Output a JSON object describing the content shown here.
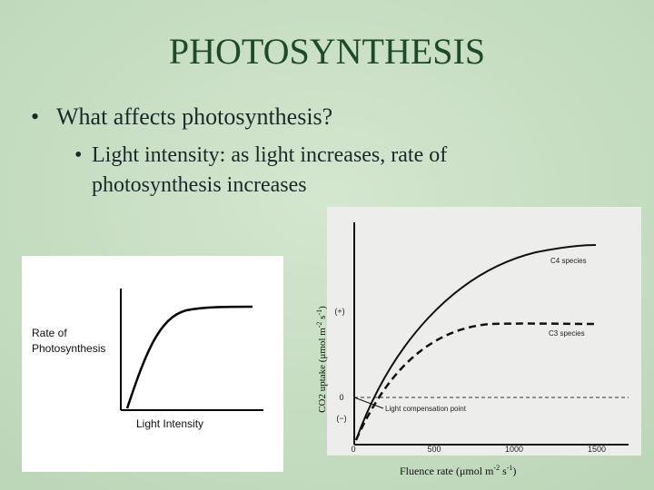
{
  "slide": {
    "title": "PHOTOSYNTHESIS",
    "bullets": [
      {
        "text": "What affects photosynthesis?",
        "sub": [
          {
            "lines": [
              "Light intensity:  as light increases, rate of",
              "photosynthesis increases"
            ]
          }
        ]
      }
    ],
    "figures": [
      {
        "y_label": [
          "Rate of",
          "Photosynthesis"
        ],
        "x_label": "Light Intensity"
      },
      {
        "y_label": {
          "parts": [
            "CO2 uptake (μmol m",
            "-2",
            " s",
            "-1",
            ")"
          ]
        },
        "x_label": {
          "parts": [
            "Fluence rate (μmol m",
            "-2",
            " s",
            "-1",
            ")"
          ]
        },
        "y_ticks": [
          "(+)",
          "0",
          "(−)"
        ],
        "x_ticks": [
          "0",
          "500",
          "1000",
          "1500"
        ],
        "annotations": [
          "C4 species",
          "C3 species",
          "Light compensation point"
        ]
      }
    ]
  }
}
